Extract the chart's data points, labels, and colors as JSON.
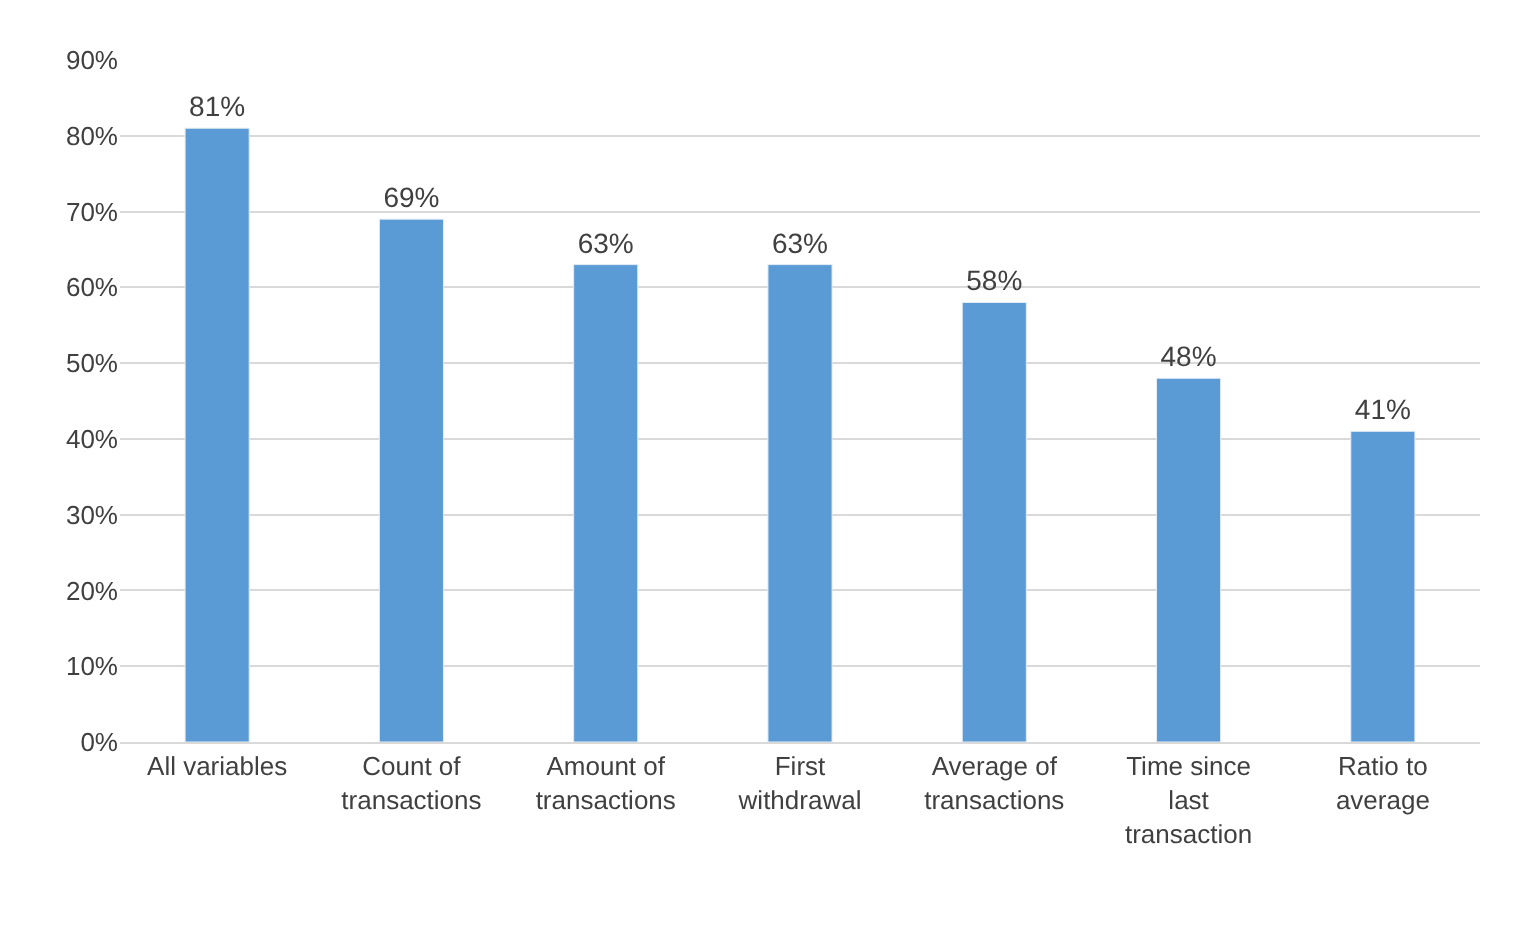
{
  "chart_data": {
    "type": "bar",
    "categories": [
      "All variables",
      "Count of transactions",
      "Amount of transactions",
      "First withdrawal",
      "Average of transactions",
      "Time since last transaction",
      "Ratio to average"
    ],
    "values": [
      81,
      69,
      63,
      63,
      58,
      48,
      41
    ],
    "value_labels": [
      "81%",
      "69%",
      "63%",
      "63%",
      "58%",
      "48%",
      "41%"
    ],
    "color": "#5b9bd5",
    "ylim": [
      0,
      90
    ],
    "yticks": [
      {
        "value": 0,
        "label": "0%"
      },
      {
        "value": 10,
        "label": "10%"
      },
      {
        "value": 20,
        "label": "20%"
      },
      {
        "value": 30,
        "label": "30%"
      },
      {
        "value": 40,
        "label": "40%"
      },
      {
        "value": 50,
        "label": "50%"
      },
      {
        "value": 60,
        "label": "60%"
      },
      {
        "value": 70,
        "label": "70%"
      },
      {
        "value": 80,
        "label": "80%"
      },
      {
        "value": 90,
        "label": "90%"
      }
    ],
    "grid": "y"
  }
}
